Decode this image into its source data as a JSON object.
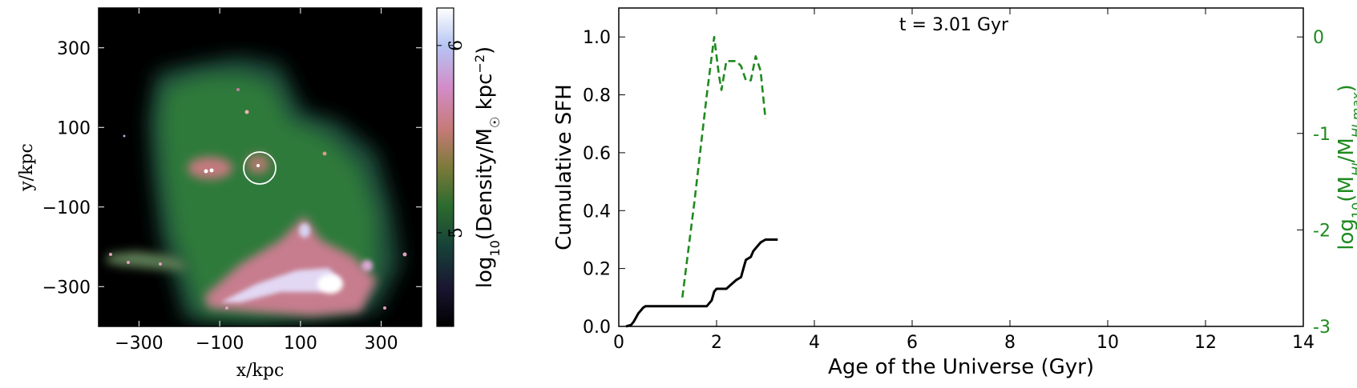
{
  "chart_data": [
    {
      "type": "heatmap",
      "xlabel": "x/kpc",
      "ylabel": "y/kpc",
      "xlim": [
        -400,
        400
      ],
      "ylim": [
        -400,
        400
      ],
      "x_ticks": [
        -300,
        -100,
        100,
        300
      ],
      "y_ticks": [
        -300,
        -100,
        100,
        300
      ],
      "x_tick_labels": [
        "−300",
        "−100",
        "100",
        "300"
      ],
      "y_tick_labels": [
        "−300",
        "−100",
        "100",
        "300"
      ],
      "colormap": "cubehelix",
      "circle": {
        "cx": 0,
        "cy": 10,
        "r": 40
      },
      "colorbar": {
        "label": "log10(Density/M☉ kpc−2)",
        "range": [
          4.5,
          6.2
        ],
        "ticks": [
          5,
          6
        ],
        "tick_labels": [
          "5",
          "6"
        ]
      }
    },
    {
      "type": "line",
      "annotation": "t = 3.01 Gyr",
      "xlabel": "Age of the Universe (Gyr)",
      "ylabel": "Cumulative SFH",
      "y2label": "log10(MHI/MHI,max)",
      "xlim": [
        0,
        14
      ],
      "ylim": [
        0,
        1.1
      ],
      "y2lim": [
        -3,
        0.3
      ],
      "x_ticks": [
        0,
        2,
        4,
        6,
        8,
        10,
        12,
        14
      ],
      "y_ticks": [
        0.0,
        0.2,
        0.4,
        0.6,
        0.8,
        1.0
      ],
      "y_tick_labels": [
        "0.0",
        "0.2",
        "0.4",
        "0.6",
        "0.8",
        "1.0"
      ],
      "y2_ticks": [
        -3,
        -2,
        -1,
        0
      ],
      "y2_tick_labels": [
        "-3",
        "-2",
        "-1",
        "0"
      ],
      "series": [
        {
          "axis": "left",
          "color": "#000000",
          "style": "solid",
          "x": [
            0.15,
            0.25,
            0.3,
            0.35,
            0.4,
            0.45,
            0.5,
            0.55,
            0.6,
            1.5,
            1.8,
            1.9,
            1.95,
            2.0,
            2.2,
            2.3,
            2.4,
            2.5,
            2.55,
            2.6,
            2.7,
            2.75,
            2.8,
            2.9,
            3.0,
            3.25
          ],
          "y": [
            0.0,
            0.005,
            0.015,
            0.03,
            0.045,
            0.055,
            0.065,
            0.07,
            0.07,
            0.07,
            0.07,
            0.09,
            0.12,
            0.13,
            0.13,
            0.145,
            0.16,
            0.17,
            0.2,
            0.23,
            0.24,
            0.26,
            0.27,
            0.29,
            0.3,
            0.3
          ]
        },
        {
          "axis": "right",
          "color": "#1f8a1f",
          "style": "dashed",
          "x": [
            1.3,
            1.55,
            1.8,
            1.95,
            2.05,
            2.1,
            2.2,
            2.3,
            2.4,
            2.5,
            2.6,
            2.7,
            2.8,
            2.9,
            3.0
          ],
          "y": [
            -2.7,
            -1.7,
            -0.6,
            0.0,
            -0.4,
            -0.55,
            -0.25,
            -0.25,
            -0.25,
            -0.3,
            -0.45,
            -0.45,
            -0.2,
            -0.35,
            -0.85
          ]
        }
      ]
    }
  ]
}
